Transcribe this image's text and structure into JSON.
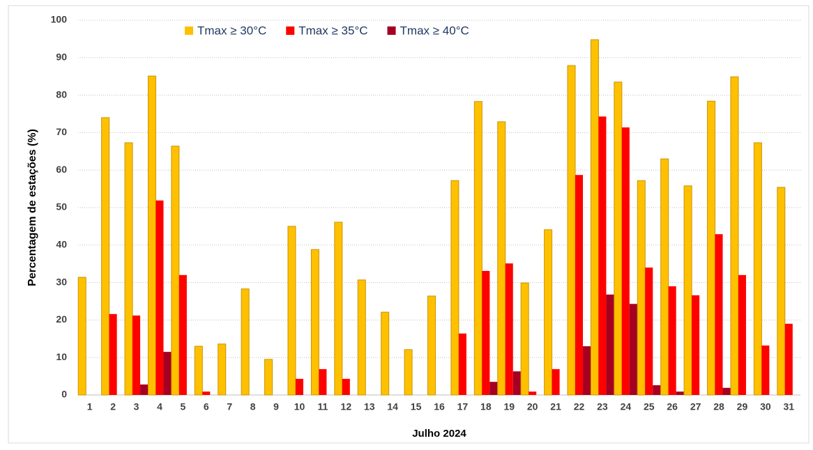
{
  "chart_data": {
    "type": "bar",
    "y_label": "Percentagem de estações (%)",
    "x_label": "Julho 2024",
    "categories": [
      "1",
      "2",
      "3",
      "4",
      "5",
      "6",
      "7",
      "8",
      "9",
      "10",
      "11",
      "12",
      "13",
      "14",
      "15",
      "16",
      "17",
      "18",
      "19",
      "20",
      "21",
      "22",
      "23",
      "24",
      "25",
      "26",
      "27",
      "28",
      "29",
      "30",
      "31"
    ],
    "series": [
      {
        "name": "Tmax ≥ 30°C",
        "color": "#FFC000",
        "values": [
          31.4,
          74.0,
          67.3,
          85.1,
          66.4,
          13.0,
          13.6,
          28.3,
          9.5,
          45.0,
          38.8,
          46.1,
          30.7,
          22.1,
          12.1,
          26.4,
          57.2,
          78.3,
          72.9,
          29.9,
          44.1,
          87.9,
          94.8,
          83.5,
          57.2,
          63.0,
          55.8,
          78.4,
          84.9,
          67.3,
          55.4
        ]
      },
      {
        "name": "Tmax ≥ 35°C",
        "color": "#FF0000",
        "values": [
          0,
          21.6,
          21.2,
          51.9,
          32.0,
          0.9,
          0,
          0,
          0,
          4.3,
          6.9,
          4.3,
          0,
          0,
          0,
          0,
          16.4,
          33.1,
          35.1,
          0.9,
          6.9,
          58.7,
          74.3,
          71.4,
          34.0,
          29.0,
          26.6,
          42.9,
          32.0,
          13.2,
          19.0
        ]
      },
      {
        "name": "Tmax ≥ 40°C",
        "color": "#A50021",
        "values": [
          0,
          0,
          2.8,
          11.5,
          0,
          0,
          0,
          0,
          0,
          0,
          0,
          0,
          0,
          0,
          0,
          0,
          0,
          3.5,
          6.3,
          0,
          0,
          13.0,
          26.8,
          24.3,
          2.6,
          0.9,
          0,
          1.9,
          0,
          0,
          0
        ]
      }
    ],
    "ylim": [
      0,
      100
    ],
    "yticks": [
      0,
      10,
      20,
      30,
      40,
      50,
      60,
      70,
      80,
      90,
      100
    ],
    "grid": true,
    "legend": "top"
  }
}
